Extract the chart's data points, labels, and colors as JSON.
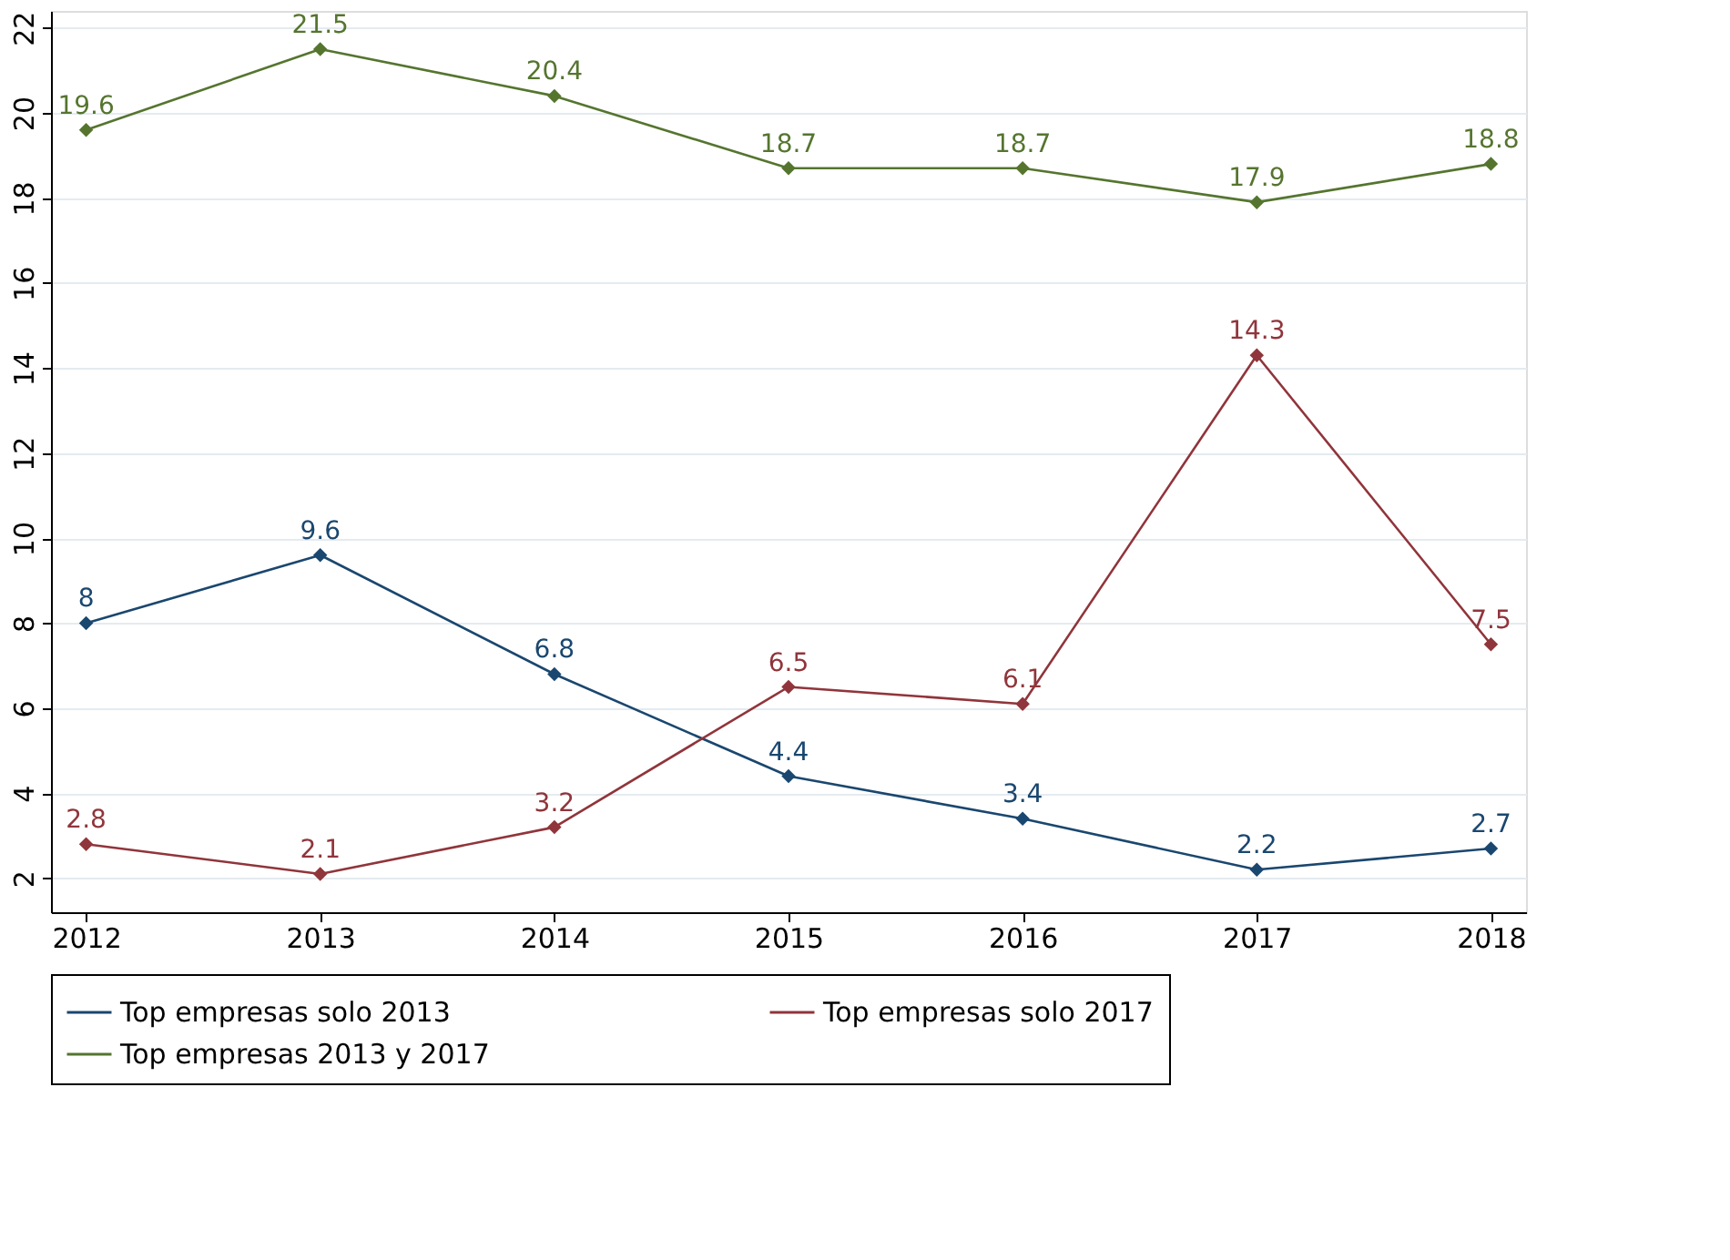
{
  "chart_data": {
    "type": "line",
    "categories": [
      "2012",
      "2013",
      "2014",
      "2015",
      "2016",
      "2017",
      "2018"
    ],
    "series": [
      {
        "name": "Top empresas solo 2013",
        "color": "#1a476f",
        "values": [
          8,
          9.6,
          6.8,
          4.4,
          3.4,
          2.2,
          2.7
        ]
      },
      {
        "name": "Top empresas solo 2017",
        "color": "#90353b",
        "values": [
          2.8,
          2.1,
          3.2,
          6.5,
          6.1,
          14.3,
          7.5
        ]
      },
      {
        "name": "Top empresas 2013 y 2017",
        "color": "#55752f",
        "values": [
          19.6,
          21.5,
          20.4,
          18.7,
          18.7,
          17.9,
          18.8
        ]
      }
    ],
    "ylim": [
      1.2,
      22.4
    ],
    "yticks": [
      2,
      4,
      6,
      8,
      10,
      12,
      14,
      16,
      18,
      20,
      22
    ],
    "grid": "y",
    "legend": "bottom",
    "marker": "diamond",
    "line_style": "solid",
    "data_labels": true
  }
}
